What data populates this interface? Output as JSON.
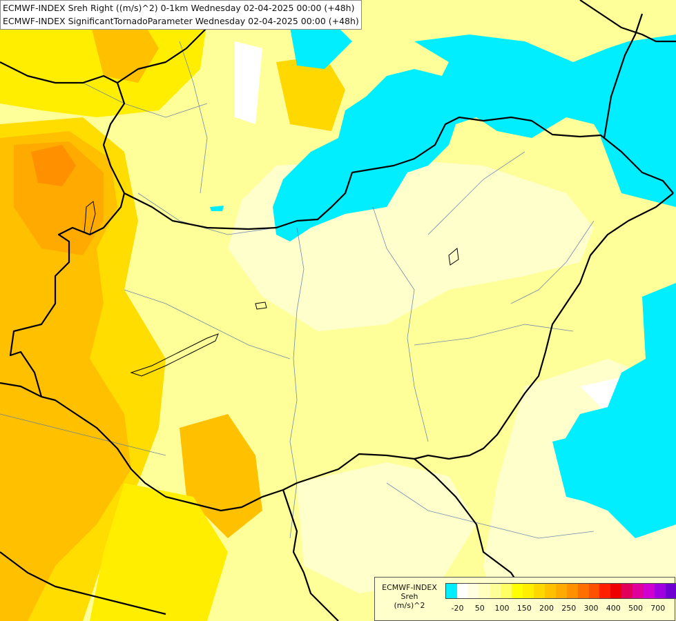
{
  "title_lines": [
    "ECMWF-INDEX Sreh Right ((m/s)^2) 0-1km Wednesday 02-04-2025 00:00 (+48h)",
    "ECMWF-INDEX SignificantTornadoParameter Wednesday 02-04-2025 00:00 (+48h)"
  ],
  "legend": {
    "title_lines": [
      "ECMWF-INDEX",
      "Sreh",
      "(m/s)^2"
    ],
    "colors": [
      "#00eeff",
      "#ffffff",
      "#ffffe0",
      "#ffffc0",
      "#ffff99",
      "#ffff66",
      "#ffff00",
      "#ffee00",
      "#ffd800",
      "#ffc000",
      "#ffaa00",
      "#ff9000",
      "#ff7000",
      "#ff5000",
      "#ff2000",
      "#ee0000",
      "#e0005a",
      "#e0009a",
      "#d000d0",
      "#a000e0",
      "#7000d0",
      "#3a00b0",
      "#000088"
    ],
    "tick_labels": [
      "-20",
      "50",
      "100",
      "150",
      "200",
      "250",
      "300",
      "400",
      "500",
      "700"
    ]
  },
  "colors": {
    "background": "#ffff99",
    "cyan": "#00eeff",
    "border": "#000000",
    "river": "#5577aa"
  }
}
